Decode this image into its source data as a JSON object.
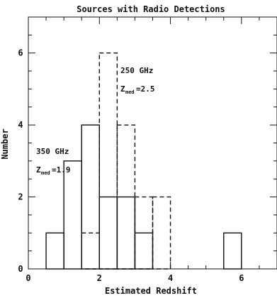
{
  "chart_data": {
    "type": "histogram",
    "title": "Sources with Radio Detections",
    "xlabel": "Estimated Redshift",
    "ylabel": "Number",
    "xlim": [
      0,
      7
    ],
    "ylim": [
      0,
      7
    ],
    "x_ticks": [
      0,
      2,
      4,
      6
    ],
    "y_ticks": [
      0,
      2,
      4,
      6
    ],
    "grid": false,
    "series": [
      {
        "name": "350 GHz",
        "style": "solid",
        "color": "#111111",
        "bins": [
          {
            "x0": 0.5,
            "x1": 1.0,
            "value": 1
          },
          {
            "x0": 1.0,
            "x1": 1.5,
            "value": 3
          },
          {
            "x0": 1.5,
            "x1": 2.0,
            "value": 4
          },
          {
            "x0": 2.0,
            "x1": 2.5,
            "value": 2
          },
          {
            "x0": 2.5,
            "x1": 3.0,
            "value": 2
          },
          {
            "x0": 3.0,
            "x1": 3.5,
            "value": 1
          },
          {
            "x0": 5.5,
            "x1": 6.0,
            "value": 1
          }
        ]
      },
      {
        "name": "250 GHz",
        "style": "dashed",
        "color": "#111111",
        "bins": [
          {
            "x0": 1.5,
            "x1": 2.0,
            "value": 1
          },
          {
            "x0": 2.0,
            "x1": 2.5,
            "value": 6
          },
          {
            "x0": 2.5,
            "x1": 3.0,
            "value": 4
          },
          {
            "x0": 3.0,
            "x1": 3.5,
            "value": 2
          },
          {
            "x0": 3.5,
            "x1": 4.0,
            "value": 2
          }
        ]
      }
    ],
    "annotations": [
      {
        "line1": "350 GHz",
        "z_symbol": "Z",
        "z_subscript": "med",
        "z_value": "=1.9"
      },
      {
        "line1": "250 GHz",
        "z_symbol": "Z",
        "z_subscript": "med",
        "z_value": "=2.5"
      }
    ]
  }
}
